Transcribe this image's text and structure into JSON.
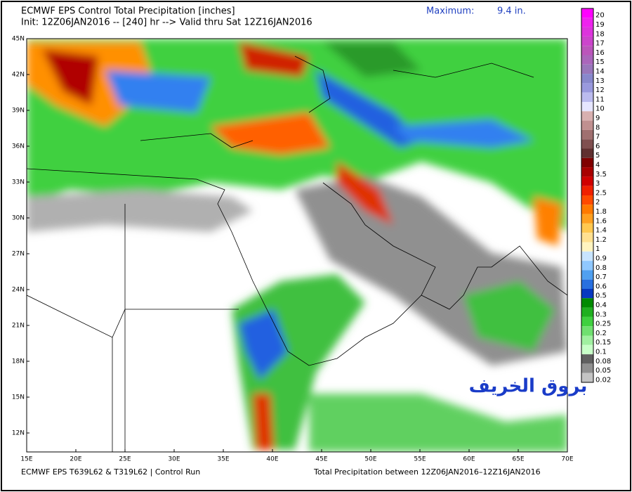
{
  "header": {
    "title": "ECMWF EPS Control Total Precipitation [inches]",
    "subtitle": "Init: 12Z06JAN2016 -- [240] hr --> Valid thru Sat 12Z16JAN2016",
    "maximum_label": "Maximum:",
    "maximum_value": "9.4 in."
  },
  "map": {
    "lat_labels": [
      "45N",
      "42N",
      "39N",
      "36N",
      "33N",
      "30N",
      "27N",
      "24N",
      "21N",
      "18N",
      "15N",
      "12N"
    ],
    "lon_labels": [
      "15E",
      "20E",
      "25E",
      "30E",
      "35E",
      "40E",
      "45E",
      "50E",
      "55E",
      "60E",
      "65E",
      "70E"
    ]
  },
  "colorbar": {
    "entries": [
      {
        "label": "20",
        "color": "#ff00ff"
      },
      {
        "label": "19",
        "color": "#ee22ee"
      },
      {
        "label": "18",
        "color": "#dd33dd"
      },
      {
        "label": "17",
        "color": "#cc44cc"
      },
      {
        "label": "16",
        "color": "#bb55bb"
      },
      {
        "label": "15",
        "color": "#aa66bb"
      },
      {
        "label": "14",
        "color": "#9977bb"
      },
      {
        "label": "13",
        "color": "#8888cc"
      },
      {
        "label": "12",
        "color": "#9999dd"
      },
      {
        "label": "11",
        "color": "#bbbbee"
      },
      {
        "label": "10",
        "color": "#e6e6ff"
      },
      {
        "label": "9",
        "color": "#d8b0b0"
      },
      {
        "label": "8",
        "color": "#c09090"
      },
      {
        "label": "7",
        "color": "#a07070"
      },
      {
        "label": "6",
        "color": "#805050"
      },
      {
        "label": "5",
        "color": "#603030"
      },
      {
        "label": "4",
        "color": "#800000"
      },
      {
        "label": "3.5",
        "color": "#a80000"
      },
      {
        "label": "3",
        "color": "#d00000"
      },
      {
        "label": "2.5",
        "color": "#f02000"
      },
      {
        "label": "2",
        "color": "#ff4a00"
      },
      {
        "label": "1.8",
        "color": "#ff7a00"
      },
      {
        "label": "1.6",
        "color": "#ffa020"
      },
      {
        "label": "1.4",
        "color": "#ffc850"
      },
      {
        "label": "1.2",
        "color": "#ffe090"
      },
      {
        "label": "1",
        "color": "#fff4c0"
      },
      {
        "label": "0.9",
        "color": "#c8e4ff"
      },
      {
        "label": "0.8",
        "color": "#90c8ff"
      },
      {
        "label": "0.7",
        "color": "#50a0f0"
      },
      {
        "label": "0.6",
        "color": "#2870e0"
      },
      {
        "label": "0.5",
        "color": "#0838c0"
      },
      {
        "label": "0.4",
        "color": "#008a00"
      },
      {
        "label": "0.3",
        "color": "#20b020"
      },
      {
        "label": "0.25",
        "color": "#40d040"
      },
      {
        "label": "0.2",
        "color": "#70e070"
      },
      {
        "label": "0.15",
        "color": "#a0f0a0"
      },
      {
        "label": "0.1",
        "color": "#c8ffc8"
      },
      {
        "label": "0.08",
        "color": "#606060"
      },
      {
        "label": "0.05",
        "color": "#909090"
      },
      {
        "label": "0.02",
        "color": "#c4c4c4"
      }
    ]
  },
  "footer": {
    "left": "ECMWF EPS T639L62 & T319L62 | Control Run",
    "right": "Total Precipitation between 12Z06JAN2016–12Z16JAN2016"
  },
  "watermark": "بروق الخريف"
}
